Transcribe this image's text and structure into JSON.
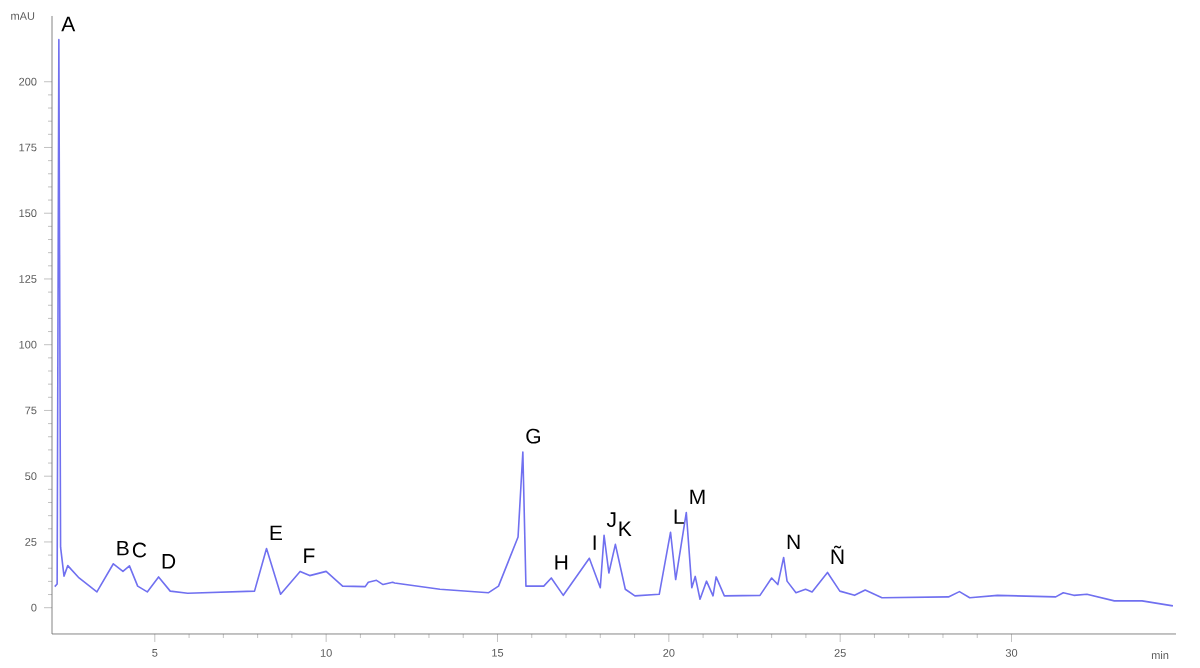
{
  "chart_data": {
    "type": "line",
    "xlabel": "min",
    "ylabel": "mAU",
    "xlim": [
      2.0,
      34.8
    ],
    "ylim": [
      -10,
      225
    ],
    "xticks": [
      5,
      10,
      15,
      20,
      25,
      30
    ],
    "yticks": [
      0,
      25,
      50,
      75,
      100,
      125,
      150,
      175,
      200
    ],
    "grid": false,
    "marker": "none",
    "line_style": "solid",
    "series": [
      {
        "color": "#7070f0",
        "x": [
          2.08,
          2.15,
          2.2,
          2.25,
          2.35,
          2.46,
          2.79,
          3.31,
          3.79,
          4.07,
          4.26,
          4.5,
          4.78,
          5.11,
          5.45,
          5.96,
          7.91,
          8.26,
          8.67,
          9.24,
          9.52,
          10.0,
          10.48,
          11.14,
          11.23,
          11.47,
          11.66,
          11.94,
          12.0,
          13.32,
          14.74,
          15.03,
          15.6,
          15.74,
          15.83,
          16.35,
          16.57,
          16.92,
          17.68,
          18.0,
          18.11,
          18.25,
          18.44,
          18.73,
          19.01,
          19.72,
          20.05,
          20.2,
          20.51,
          20.67,
          20.77,
          20.91,
          21.1,
          21.29,
          21.38,
          21.62,
          22.66,
          23.0,
          23.18,
          23.35,
          23.45,
          23.71,
          23.99,
          24.18,
          24.63,
          24.99,
          25.42,
          25.73,
          26.22,
          28.16,
          28.48,
          28.78,
          29.59,
          31.29,
          31.51,
          31.82,
          32.2,
          33.0,
          33.81,
          34.71
        ],
        "values": [
          8,
          9,
          216,
          23,
          12,
          16,
          11.3,
          6,
          16.7,
          13.8,
          15.9,
          8.2,
          6,
          11.7,
          6.3,
          5.5,
          6.3,
          22.5,
          5.1,
          13.8,
          12.2,
          13.8,
          8.2,
          8,
          9.7,
          10.4,
          8.8,
          9.7,
          9.4,
          7,
          5.7,
          8.2,
          26.9,
          59.2,
          8.2,
          8.2,
          11.3,
          4.7,
          18.8,
          7.6,
          27.5,
          13.2,
          24.1,
          7,
          4.5,
          5.1,
          28.7,
          10.7,
          36.2,
          7.6,
          11.9,
          3.2,
          10.1,
          4.5,
          11.7,
          4.5,
          4.7,
          11.3,
          8.8,
          19.1,
          10.1,
          5.7,
          7,
          6,
          13.4,
          6.3,
          4.7,
          6.7,
          3.8,
          4.1,
          6.1,
          3.8,
          4.7,
          4.1,
          5.7,
          4.7,
          5.1,
          2.6,
          2.6,
          0.7
        ]
      }
    ],
    "annotations": [
      {
        "text": "A",
        "x": 2.2,
        "y": 216
      },
      {
        "text": "B",
        "x": 3.79,
        "y": 16.7
      },
      {
        "text": "C",
        "x": 4.26,
        "y": 15.9
      },
      {
        "text": "D",
        "x": 5.11,
        "y": 11.7
      },
      {
        "text": "E",
        "x": 8.26,
        "y": 22.5
      },
      {
        "text": "F",
        "x": 9.24,
        "y": 13.8
      },
      {
        "text": "G",
        "x": 15.74,
        "y": 59.2
      },
      {
        "text": "H",
        "x": 16.57,
        "y": 11.3
      },
      {
        "text": "I",
        "x": 17.68,
        "y": 18.8
      },
      {
        "text": "J",
        "x": 18.11,
        "y": 27.5
      },
      {
        "text": "K",
        "x": 18.44,
        "y": 24.1
      },
      {
        "text": "L",
        "x": 20.05,
        "y": 28.7
      },
      {
        "text": "M",
        "x": 20.51,
        "y": 36.2
      },
      {
        "text": "N",
        "x": 23.35,
        "y": 19.1
      },
      {
        "text": "Ñ",
        "x": 24.63,
        "y": 13.4
      }
    ]
  }
}
